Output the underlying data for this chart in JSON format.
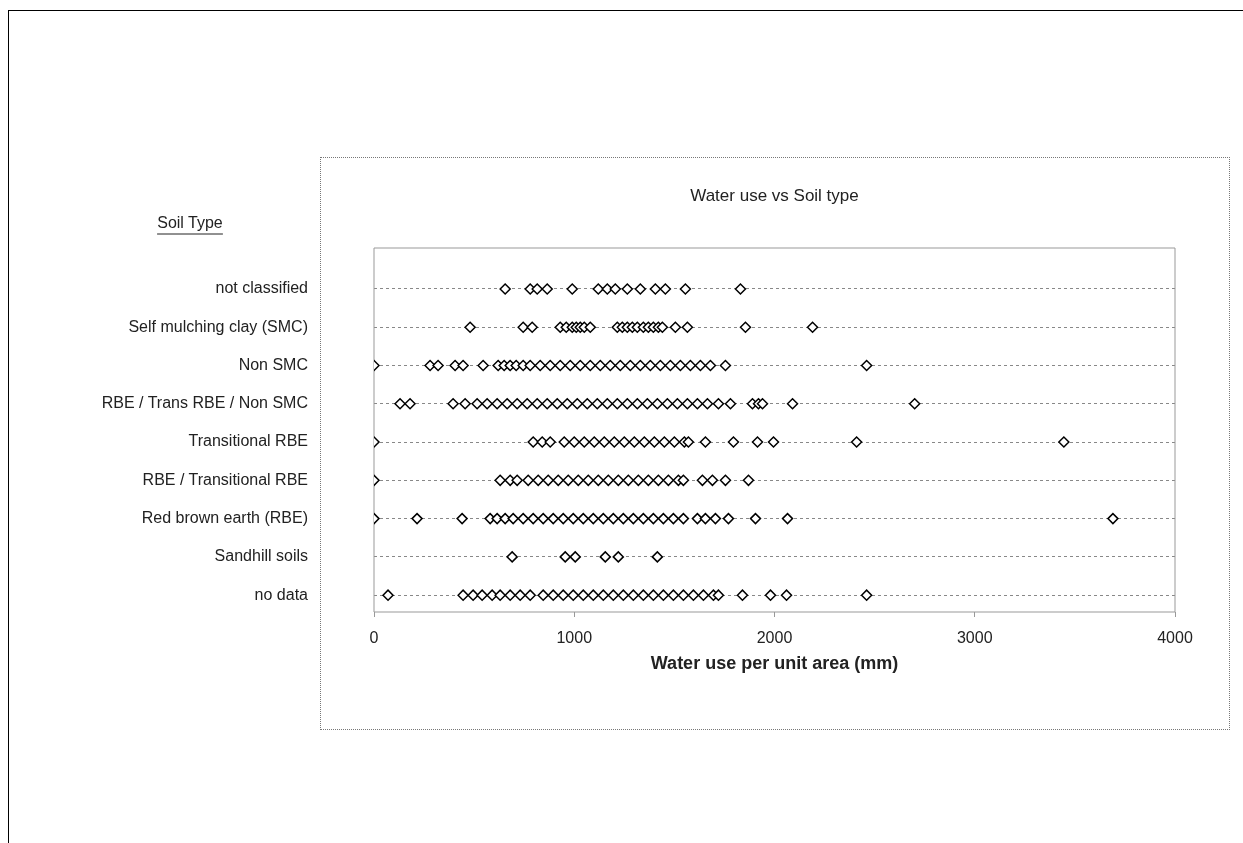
{
  "chart_data": {
    "type": "scatter",
    "orientation": "horizontal",
    "title": "Water use vs Soil type",
    "xlabel": "Water use per unit area (mm)",
    "ylabel": "Soil Type",
    "categories": [
      "not classified",
      "Self mulching clay (SMC)",
      "Non SMC",
      "RBE / Trans RBE / Non SMC",
      "Transitional RBE",
      "RBE / Transitional RBE",
      "Red brown earth (RBE)",
      "Sandhill soils",
      "no data"
    ],
    "xlim": [
      0,
      4000
    ],
    "xticks": [
      0,
      1000,
      2000,
      3000,
      4000
    ],
    "grid": "y",
    "marker": "diamond",
    "series": [
      {
        "color": "#000000",
        "x": [
          "not classified",
          "not classified",
          "not classified",
          "not classified",
          "not classified",
          "not classified",
          "not classified",
          "not classified",
          "not classified",
          "not classified",
          "not classified",
          "not classified",
          "not classified",
          "not classified"
        ],
        "values": [
          655,
          780,
          815,
          865,
          990,
          1120,
          1165,
          1205,
          1265,
          1330,
          1405,
          1455,
          1555,
          1830
        ]
      },
      {
        "color": "#000000",
        "x": [
          "Self mulching clay (SMC)",
          "Self mulching clay (SMC)",
          "Self mulching clay (SMC)",
          "Self mulching clay (SMC)",
          "Self mulching clay (SMC)",
          "Self mulching clay (SMC)",
          "Self mulching clay (SMC)",
          "Self mulching clay (SMC)",
          "Self mulching clay (SMC)",
          "Self mulching clay (SMC)",
          "Self mulching clay (SMC)",
          "Self mulching clay (SMC)",
          "Self mulching clay (SMC)",
          "Self mulching clay (SMC)",
          "Self mulching clay (SMC)",
          "Self mulching clay (SMC)",
          "Self mulching clay (SMC)",
          "Self mulching clay (SMC)",
          "Self mulching clay (SMC)",
          "Self mulching clay (SMC)",
          "Self mulching clay (SMC)",
          "Self mulching clay (SMC)",
          "Self mulching clay (SMC)",
          "Self mulching clay (SMC)"
        ],
        "values": [
          480,
          745,
          790,
          930,
          960,
          990,
          1010,
          1030,
          1050,
          1080,
          1215,
          1240,
          1265,
          1290,
          1315,
          1345,
          1370,
          1395,
          1420,
          1440,
          1505,
          1565,
          1855,
          2190
        ]
      },
      {
        "color": "#000000",
        "x": [
          "Non SMC",
          "Non SMC",
          "Non SMC",
          "Non SMC",
          "Non SMC",
          "Non SMC",
          "Non SMC",
          "Non SMC",
          "Non SMC",
          "Non SMC",
          "Non SMC",
          "Non SMC",
          "Non SMC",
          "Non SMC",
          "Non SMC",
          "Non SMC",
          "Non SMC",
          "Non SMC",
          "Non SMC",
          "Non SMC",
          "Non SMC",
          "Non SMC",
          "Non SMC",
          "Non SMC",
          "Non SMC",
          "Non SMC",
          "Non SMC",
          "Non SMC",
          "Non SMC",
          "Non SMC",
          "Non SMC",
          "Non SMC"
        ],
        "values": [
          0,
          280,
          320,
          405,
          445,
          545,
          620,
          650,
          680,
          710,
          745,
          780,
          830,
          880,
          930,
          980,
          1030,
          1080,
          1130,
          1180,
          1230,
          1280,
          1330,
          1380,
          1430,
          1480,
          1530,
          1580,
          1630,
          1680,
          1755,
          2460
        ]
      },
      {
        "color": "#000000",
        "x": [
          "RBE / Trans RBE / Non SMC",
          "RBE / Trans RBE / Non SMC",
          "RBE / Trans RBE / Non SMC",
          "RBE / Trans RBE / Non SMC",
          "RBE / Trans RBE / Non SMC",
          "RBE / Trans RBE / Non SMC",
          "RBE / Trans RBE / Non SMC",
          "RBE / Trans RBE / Non SMC",
          "RBE / Trans RBE / Non SMC",
          "RBE / Trans RBE / Non SMC",
          "RBE / Trans RBE / Non SMC",
          "RBE / Trans RBE / Non SMC",
          "RBE / Trans RBE / Non SMC",
          "RBE / Trans RBE / Non SMC",
          "RBE / Trans RBE / Non SMC",
          "RBE / Trans RBE / Non SMC",
          "RBE / Trans RBE / Non SMC",
          "RBE / Trans RBE / Non SMC",
          "RBE / Trans RBE / Non SMC",
          "RBE / Trans RBE / Non SMC",
          "RBE / Trans RBE / Non SMC",
          "RBE / Trans RBE / Non SMC",
          "RBE / Trans RBE / Non SMC",
          "RBE / Trans RBE / Non SMC",
          "RBE / Trans RBE / Non SMC",
          "RBE / Trans RBE / Non SMC",
          "RBE / Trans RBE / Non SMC",
          "RBE / Trans RBE / Non SMC",
          "RBE / Trans RBE / Non SMC",
          "RBE / Trans RBE / Non SMC",
          "RBE / Trans RBE / Non SMC",
          "RBE / Trans RBE / Non SMC",
          "RBE / Trans RBE / Non SMC",
          "RBE / Trans RBE / Non SMC",
          "RBE / Trans RBE / Non SMC"
        ],
        "values": [
          130,
          180,
          395,
          455,
          515,
          565,
          615,
          665,
          715,
          765,
          815,
          865,
          915,
          965,
          1015,
          1065,
          1115,
          1165,
          1215,
          1265,
          1315,
          1365,
          1415,
          1465,
          1515,
          1565,
          1615,
          1665,
          1720,
          1780,
          1890,
          1920,
          1940,
          2090,
          2700
        ]
      },
      {
        "color": "#000000",
        "x": [
          "Transitional RBE",
          "Transitional RBE",
          "Transitional RBE",
          "Transitional RBE",
          "Transitional RBE",
          "Transitional RBE",
          "Transitional RBE",
          "Transitional RBE",
          "Transitional RBE",
          "Transitional RBE",
          "Transitional RBE",
          "Transitional RBE",
          "Transitional RBE",
          "Transitional RBE",
          "Transitional RBE",
          "Transitional RBE",
          "Transitional RBE",
          "Transitional RBE",
          "Transitional RBE",
          "Transitional RBE",
          "Transitional RBE",
          "Transitional RBE",
          "Transitional RBE",
          "Transitional RBE"
        ],
        "values": [
          0,
          795,
          840,
          880,
          950,
          1000,
          1050,
          1100,
          1150,
          1200,
          1250,
          1300,
          1350,
          1400,
          1450,
          1500,
          1550,
          1570,
          1655,
          1795,
          1915,
          1995,
          2410,
          3445
        ]
      },
      {
        "color": "#000000",
        "x": [
          "RBE / Transitional RBE",
          "RBE / Transitional RBE",
          "RBE / Transitional RBE",
          "RBE / Transitional RBE",
          "RBE / Transitional RBE",
          "RBE / Transitional RBE",
          "RBE / Transitional RBE",
          "RBE / Transitional RBE",
          "RBE / Transitional RBE",
          "RBE / Transitional RBE",
          "RBE / Transitional RBE",
          "RBE / Transitional RBE",
          "RBE / Transitional RBE",
          "RBE / Transitional RBE",
          "RBE / Transitional RBE",
          "RBE / Transitional RBE",
          "RBE / Transitional RBE",
          "RBE / Transitional RBE",
          "RBE / Transitional RBE",
          "RBE / Transitional RBE",
          "RBE / Transitional RBE",
          "RBE / Transitional RBE",
          "RBE / Transitional RBE",
          "RBE / Transitional RBE",
          "RBE / Transitional RBE"
        ],
        "values": [
          0,
          630,
          680,
          715,
          770,
          820,
          870,
          920,
          970,
          1020,
          1070,
          1120,
          1170,
          1220,
          1270,
          1320,
          1370,
          1420,
          1470,
          1520,
          1545,
          1640,
          1690,
          1755,
          1870
        ]
      },
      {
        "color": "#000000",
        "x": [
          "Red brown earth (RBE)",
          "Red brown earth (RBE)",
          "Red brown earth (RBE)",
          "Red brown earth (RBE)",
          "Red brown earth (RBE)",
          "Red brown earth (RBE)",
          "Red brown earth (RBE)",
          "Red brown earth (RBE)",
          "Red brown earth (RBE)",
          "Red brown earth (RBE)",
          "Red brown earth (RBE)",
          "Red brown earth (RBE)",
          "Red brown earth (RBE)",
          "Red brown earth (RBE)",
          "Red brown earth (RBE)",
          "Red brown earth (RBE)",
          "Red brown earth (RBE)",
          "Red brown earth (RBE)",
          "Red brown earth (RBE)",
          "Red brown earth (RBE)",
          "Red brown earth (RBE)",
          "Red brown earth (RBE)",
          "Red brown earth (RBE)",
          "Red brown earth (RBE)",
          "Red brown earth (RBE)",
          "Red brown earth (RBE)",
          "Red brown earth (RBE)",
          "Red brown earth (RBE)",
          "Red brown earth (RBE)",
          "Red brown earth (RBE)",
          "Red brown earth (RBE)"
        ],
        "values": [
          0,
          215,
          440,
          580,
          615,
          655,
          695,
          745,
          795,
          845,
          895,
          945,
          995,
          1045,
          1095,
          1145,
          1195,
          1245,
          1295,
          1345,
          1395,
          1445,
          1495,
          1545,
          1615,
          1655,
          1705,
          1770,
          1905,
          2065,
          3690
        ]
      },
      {
        "color": "#000000",
        "x": [
          "Sandhill soils",
          "Sandhill soils",
          "Sandhill soils",
          "Sandhill soils",
          "Sandhill soils",
          "Sandhill soils"
        ],
        "values": [
          690,
          955,
          1005,
          1155,
          1220,
          1415
        ]
      },
      {
        "color": "#000000",
        "x": [
          "no data",
          "no data",
          "no data",
          "no data",
          "no data",
          "no data",
          "no data",
          "no data",
          "no data",
          "no data",
          "no data",
          "no data",
          "no data",
          "no data",
          "no data",
          "no data",
          "no data",
          "no data",
          "no data",
          "no data",
          "no data",
          "no data",
          "no data",
          "no data",
          "no data",
          "no data",
          "no data",
          "no data",
          "no data",
          "no data",
          "no data",
          "no data"
        ],
        "values": [
          70,
          445,
          495,
          540,
          590,
          630,
          680,
          730,
          780,
          845,
          895,
          945,
          995,
          1045,
          1095,
          1145,
          1195,
          1245,
          1295,
          1345,
          1395,
          1445,
          1495,
          1545,
          1595,
          1645,
          1695,
          1720,
          1840,
          1980,
          2060,
          2460
        ]
      }
    ]
  }
}
